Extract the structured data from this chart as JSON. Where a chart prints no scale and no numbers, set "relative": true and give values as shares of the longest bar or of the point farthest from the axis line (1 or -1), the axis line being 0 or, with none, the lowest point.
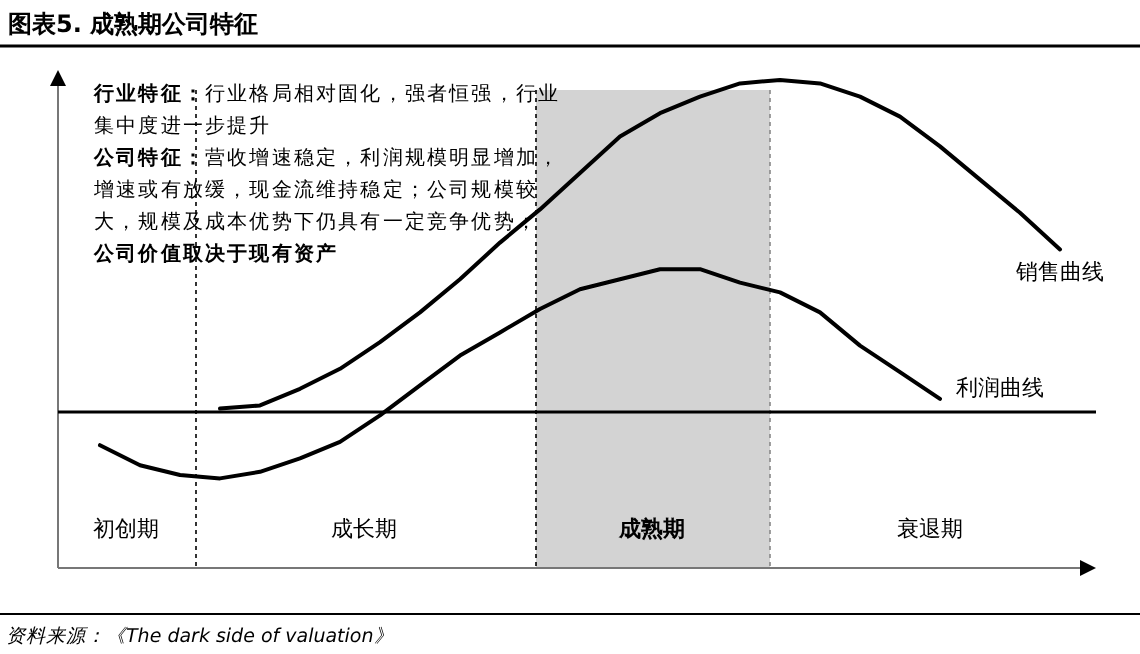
{
  "chart_data": {
    "type": "line",
    "title": "图表5. 成熟期公司特征",
    "relative": true,
    "categories": [
      null,
      null,
      null,
      null,
      null,
      null,
      null,
      null,
      null,
      null,
      null,
      null,
      null,
      null,
      null,
      null,
      null,
      null,
      null,
      null,
      null,
      null,
      null,
      null,
      null
    ],
    "series": [
      {
        "name": "销售曲线",
        "color": "#000000",
        "values": [
          null,
          null,
          null,
          0.01,
          0.02,
          0.07,
          0.13,
          0.21,
          0.3,
          0.4,
          0.51,
          0.61,
          0.72,
          0.83,
          0.9,
          0.95,
          0.99,
          1.0,
          0.99,
          0.95,
          0.89,
          0.8,
          0.7,
          0.6,
          0.49
        ]
      },
      {
        "name": "利润曲线",
        "color": "#000000",
        "values": [
          -0.1,
          -0.16,
          -0.19,
          -0.2,
          -0.18,
          -0.14,
          -0.09,
          -0.01,
          0.08,
          0.17,
          0.24,
          0.31,
          0.37,
          0.4,
          0.43,
          0.43,
          0.39,
          0.36,
          0.3,
          0.2,
          0.12,
          0.04,
          null,
          null,
          null
        ]
      }
    ],
    "annotations": [
      "行业特征：行业格局相对固化，强者恒强，行业集中度进一步提升",
      "公司特征：营收增速稳定，利润规模明显增加，增速或有放缓，现金流维持稳定；公司规模较大，规模及成本优势下仍具有一定竞争优势；",
      "公司价值取决于现有资产",
      "初创期",
      "成长期",
      "成熟期",
      "衰退期",
      "资料来源：《The dark side of valuation》"
    ]
  }
}
